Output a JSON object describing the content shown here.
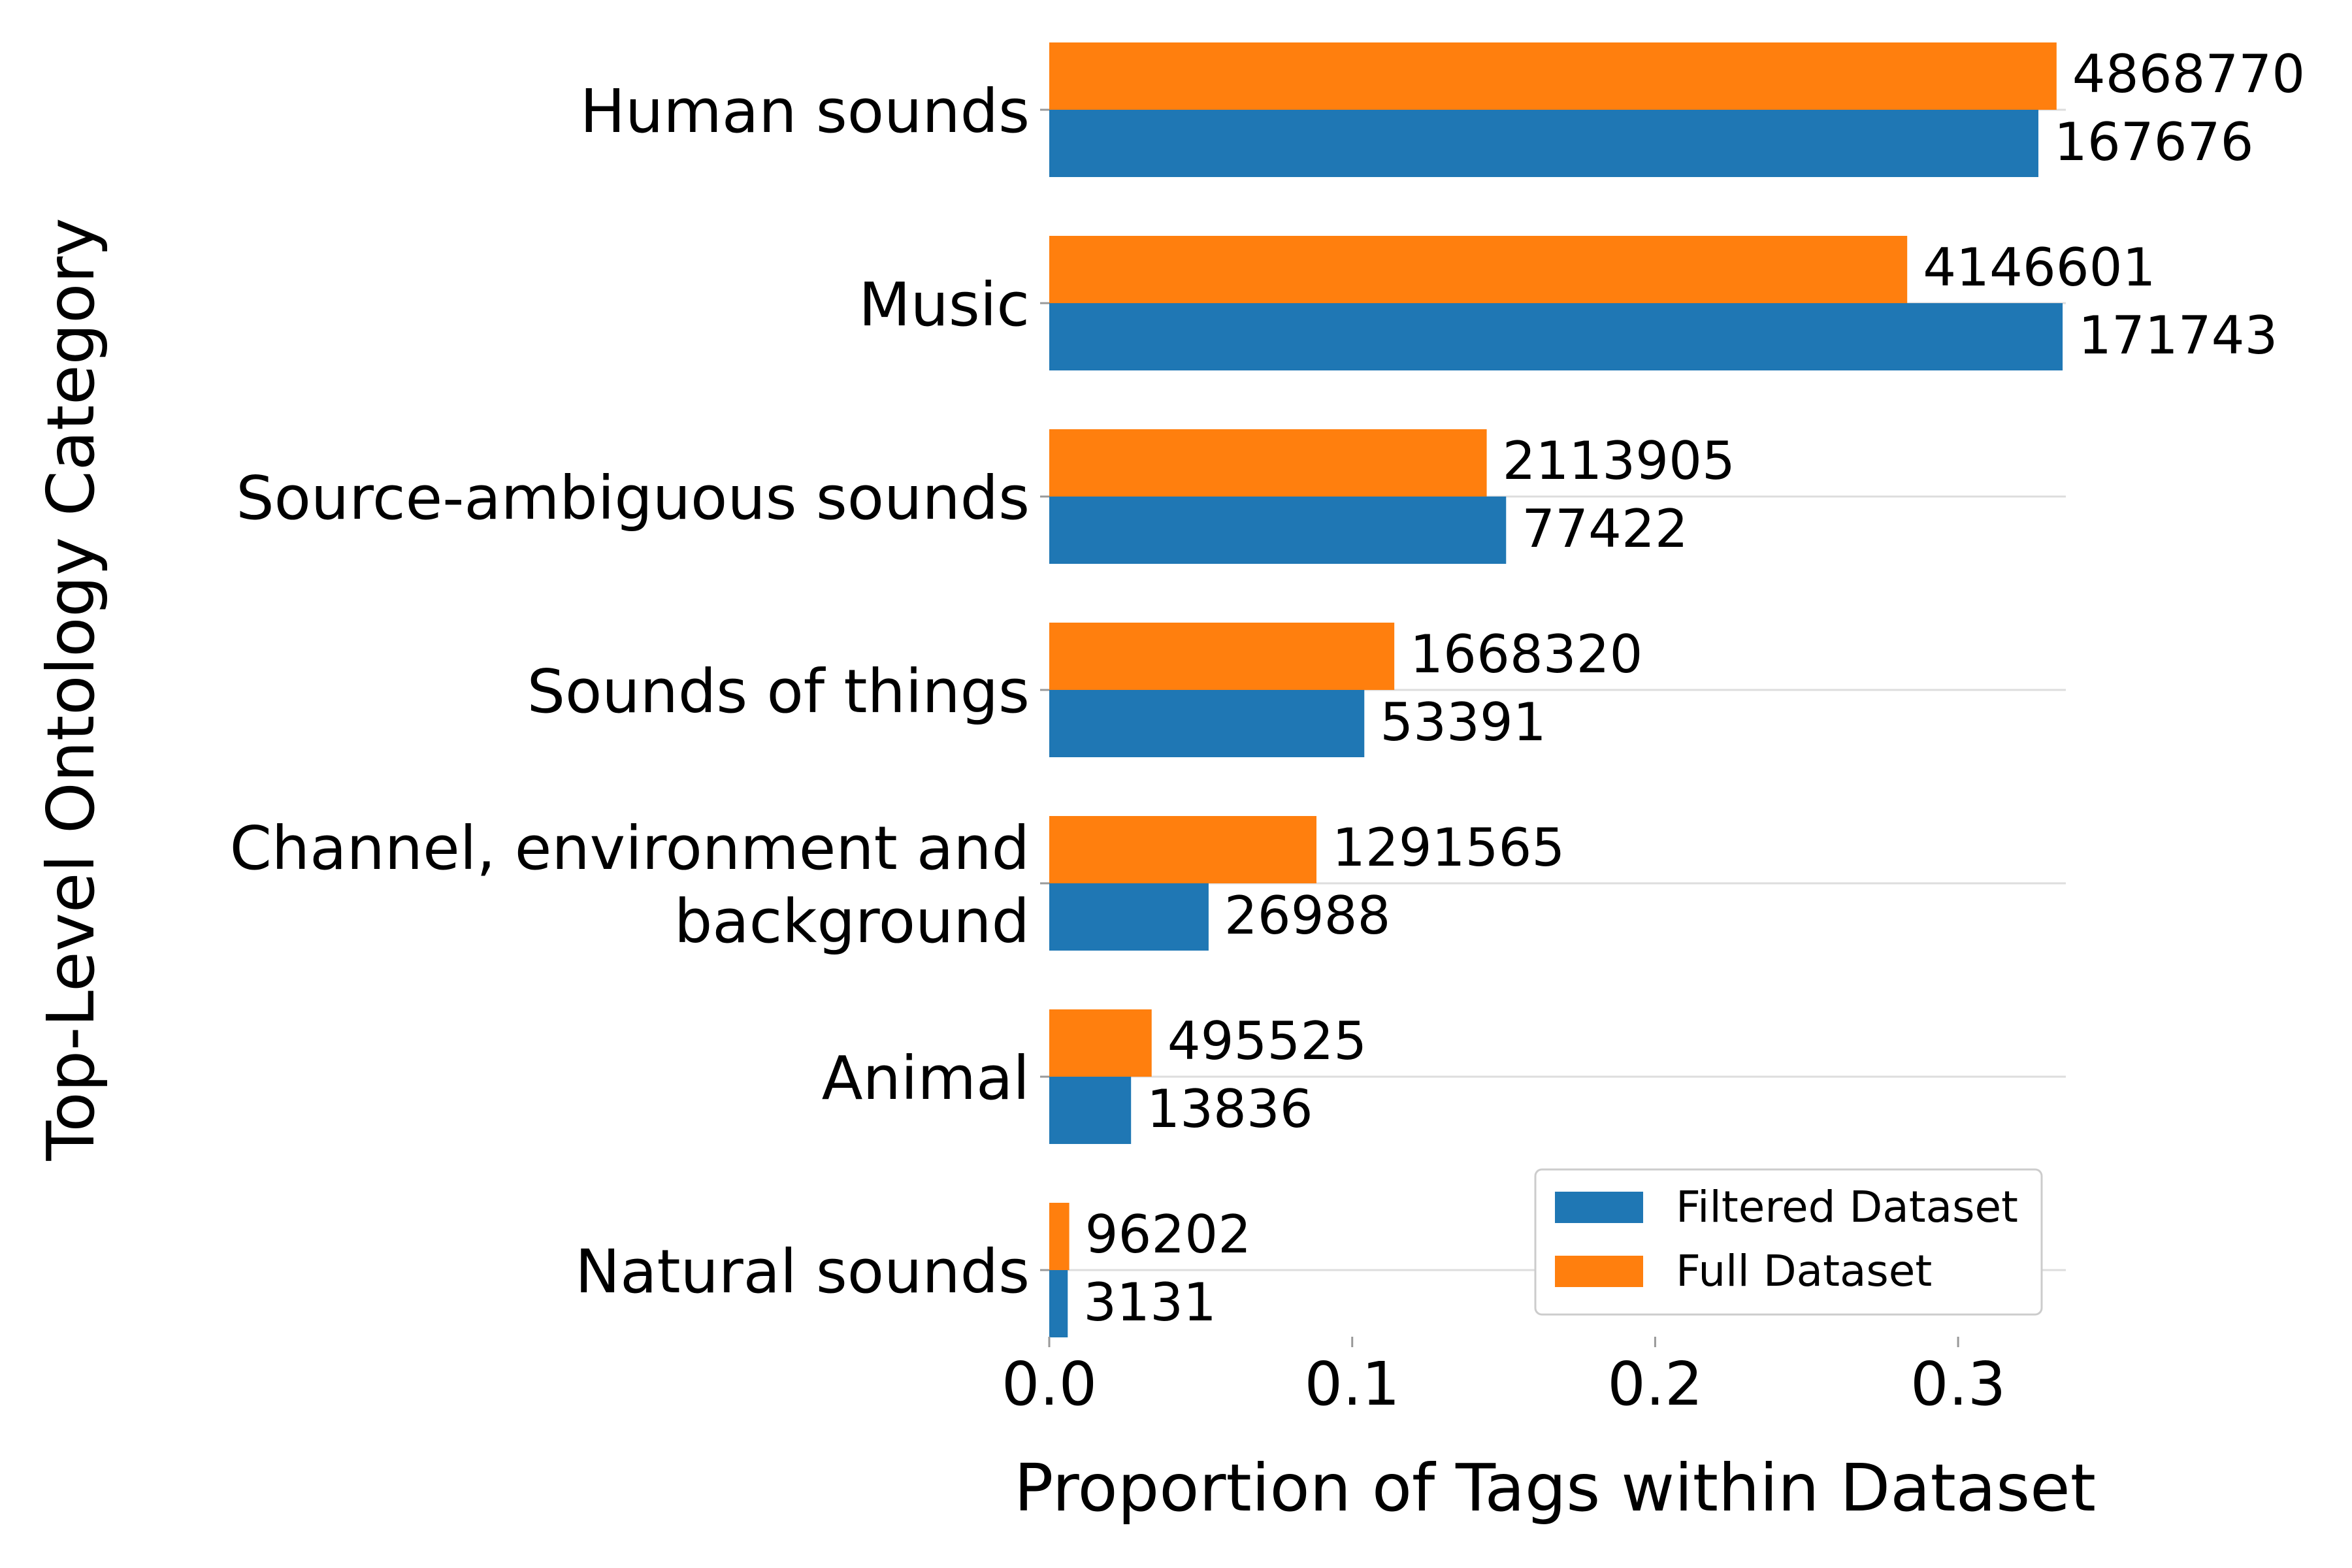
{
  "chart_data": {
    "type": "bar",
    "orientation": "horizontal",
    "xlabel": "Proportion of Tags within Dataset",
    "ylabel": "Top-Level Ontology Category",
    "xlim": [
      0,
      0.335
    ],
    "x_ticks": [
      "0.0",
      "0.1",
      "0.2",
      "0.3"
    ],
    "x_tick_values": [
      0.0,
      0.1,
      0.2,
      0.3
    ],
    "grid": "horizontal lines at category positions",
    "legend_position": "lower-right",
    "categories": [
      [
        "Human sounds"
      ],
      [
        "Music"
      ],
      [
        "Source-ambiguous sounds"
      ],
      [
        "Sounds of things"
      ],
      [
        "Channel, environment and",
        "background"
      ],
      [
        "Animal"
      ],
      [
        "Natural sounds"
      ]
    ],
    "series": [
      {
        "name": "Filtered Dataset",
        "color": "#1f77b4",
        "values": [
          0.3265,
          0.3345,
          0.1508,
          0.104,
          0.0526,
          0.027,
          0.0061
        ],
        "labels": [
          "167676",
          "171743",
          "77422",
          "53391",
          "26988",
          "13836",
          "3131"
        ]
      },
      {
        "name": "Full Dataset",
        "color": "#ff7f0e",
        "values": [
          0.3325,
          0.2832,
          0.1444,
          0.1139,
          0.0882,
          0.0338,
          0.0066
        ],
        "labels": [
          "4868770",
          "4146601",
          "2113905",
          "1668320",
          "1291565",
          "495525",
          "96202"
        ]
      }
    ]
  }
}
